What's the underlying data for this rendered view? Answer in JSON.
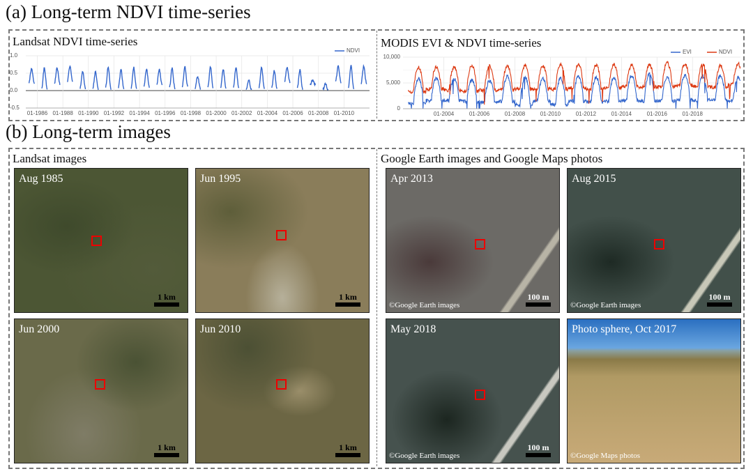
{
  "section_a_title": "(a) Long-term NDVI time-series",
  "section_b_title": "(b) Long-term images",
  "chart_data": [
    {
      "type": "line",
      "title": "Landsat NDVI time-series",
      "legend": [
        "NDVI"
      ],
      "legend_placement": "top-right",
      "yticks": [
        "1.0",
        "0.5",
        "0.0",
        "-0.5"
      ],
      "ylim": [
        -0.5,
        1.0
      ],
      "xlim": [
        1985.1,
        2012
      ],
      "xticks": [
        "01-1986",
        "01-1988",
        "01-1990",
        "01-1992",
        "01-1994",
        "01-1996",
        "01-1998",
        "01-2000",
        "01-2002",
        "01-2004",
        "01-2006",
        "01-2008",
        "01-2010"
      ],
      "xtick_years": [
        1986,
        1988,
        1990,
        1992,
        1994,
        1996,
        1998,
        2000,
        2002,
        2004,
        2006,
        2008,
        2010
      ],
      "series": [
        {
          "name": "NDVI",
          "color": "#3366cc",
          "years": [
            1985,
            1986,
            1987,
            1988,
            1989,
            1990,
            1991,
            1992,
            1993,
            1994,
            1995,
            1996,
            1997,
            1998,
            1999,
            2000,
            2001,
            2002,
            2003,
            2004,
            2005,
            2006,
            2007,
            2008,
            2009,
            2010,
            2011
          ],
          "peak": [
            0.62,
            0.64,
            0.65,
            0.7,
            0.55,
            0.53,
            0.68,
            0.6,
            0.66,
            0.62,
            0.6,
            0.65,
            0.68,
            0.4,
            0.67,
            0.62,
            0.66,
            0.3,
            0.67,
            0.57,
            0.65,
            0.6,
            0.3,
            0.2,
            0.7,
            0.72,
            0.7
          ],
          "trough": [
            0.18,
            0.0,
            0.15,
            0.2,
            0.0,
            0.0,
            0.0,
            0.02,
            0.0,
            0.05,
            0.12,
            0.0,
            0.05,
            0.03,
            0.0,
            0.0,
            0.02,
            0.0,
            0.0,
            0.0,
            0.2,
            0.0,
            0.15,
            0.0,
            0.2,
            0.0,
            0.15
          ]
        }
      ]
    },
    {
      "type": "line",
      "title": "MODIS EVI & NDVI time-series",
      "legend": [
        "EVI",
        "NDVI"
      ],
      "legend_placement": "top-right",
      "yticks": [
        "10,000",
        "5,000",
        "0"
      ],
      "ylim": [
        0,
        10000
      ],
      "xlim": [
        2001.7,
        2020.7
      ],
      "xticks": [
        "01-2004",
        "01-2006",
        "01-2008",
        "01-2010",
        "01-2012",
        "01-2014",
        "01-2016",
        "01-2018"
      ],
      "xtick_years": [
        2004,
        2006,
        2008,
        2010,
        2012,
        2014,
        2016,
        2018
      ],
      "years": [
        2002,
        2003,
        2004,
        2005,
        2006,
        2007,
        2008,
        2009,
        2010,
        2011,
        2012,
        2013,
        2014,
        2015,
        2016,
        2017,
        2018,
        2019,
        2020
      ],
      "series": [
        {
          "name": "EVI",
          "color": "#3366cc",
          "peak": [
            5800,
            5900,
            5700,
            5500,
            5400,
            6300,
            6200,
            5800,
            5900,
            6300,
            6100,
            6000,
            6500,
            6800,
            6200,
            6400,
            6300,
            6400,
            6000
          ],
          "trough": [
            1000,
            1500,
            1600,
            1400,
            1300,
            1400,
            700,
            1500,
            800,
            1500,
            1300,
            1400,
            1600,
            1500,
            1500,
            1700,
            1600,
            1700,
            1600
          ]
        },
        {
          "name": "NDVI",
          "color": "#dc3912",
          "peak": [
            8000,
            8100,
            8000,
            8400,
            8300,
            8300,
            8400,
            8300,
            8600,
            8600,
            8500,
            8600,
            8400,
            8500,
            8900,
            8600,
            8600,
            8400,
            8700
          ],
          "trough": [
            3300,
            3800,
            3600,
            3400,
            3600,
            3700,
            3800,
            3800,
            3800,
            4000,
            3700,
            4000,
            4400,
            4200,
            4300,
            4500,
            4300,
            4200,
            4700
          ]
        }
      ]
    }
  ],
  "landsat": {
    "title": "Landsat images",
    "panels": [
      {
        "label": "Aug 1985",
        "scale": "1 km"
      },
      {
        "label": "Jun 1995",
        "scale": "1 km"
      },
      {
        "label": "Jun 2000",
        "scale": "1 km"
      },
      {
        "label": "Jun 2010",
        "scale": "1 km"
      }
    ]
  },
  "google": {
    "title": "Google Earth images and Google Maps photos",
    "panels": [
      {
        "label": "Apr 2013",
        "scale": "100 m",
        "credit": "©Google Earth images"
      },
      {
        "label": "Aug 2015",
        "scale": "100 m",
        "credit": "©Google Earth images"
      },
      {
        "label": "May 2018",
        "scale": "100 m",
        "credit": "©Google Earth images"
      },
      {
        "label": "Photo sphere, Oct 2017",
        "credit": "©Google Maps photos"
      }
    ]
  }
}
